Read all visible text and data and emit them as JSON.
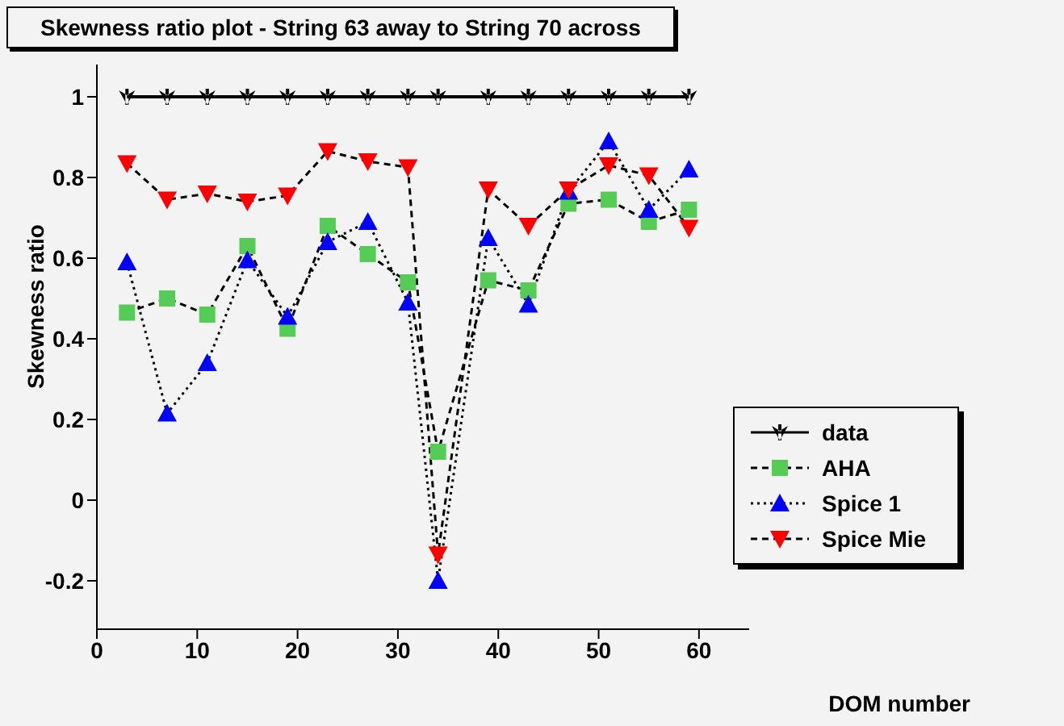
{
  "chart_data": {
    "type": "line",
    "title": "Skewness ratio plot - String 63 away to String  70 across",
    "xlabel": "DOM number",
    "ylabel": "Skewness ratio",
    "x": [
      3,
      7,
      11,
      15,
      19,
      23,
      27,
      31,
      34,
      39,
      43,
      47,
      51,
      55,
      59
    ],
    "series": [
      {
        "name": "data",
        "color": "#000000",
        "marker": "star",
        "line_style": "solid",
        "values": [
          1,
          1,
          1,
          1,
          1,
          1,
          1,
          1,
          1,
          1,
          1,
          1,
          1,
          1,
          1
        ]
      },
      {
        "name": "AHA",
        "color": "#55cc55",
        "marker": "square",
        "line_style": "dashed",
        "values": [
          0.465,
          0.5,
          0.46,
          0.63,
          0.425,
          0.68,
          0.61,
          0.54,
          0.12,
          0.545,
          0.52,
          0.735,
          0.745,
          0.69,
          0.72
        ]
      },
      {
        "name": "Spice 1",
        "color": "#0000ff",
        "marker": "triangle",
        "line_style": "dotted",
        "values": [
          0.59,
          0.215,
          0.34,
          0.595,
          0.455,
          0.64,
          0.69,
          0.49,
          -0.2,
          0.65,
          0.485,
          0.765,
          0.89,
          0.72,
          0.82
        ]
      },
      {
        "name": "Spice Mie",
        "color": "#ff0000",
        "marker": "triangle-down",
        "line_style": "dashed",
        "values": [
          0.835,
          0.745,
          0.76,
          0.74,
          0.755,
          0.865,
          0.84,
          0.825,
          -0.135,
          0.77,
          0.68,
          0.77,
          0.83,
          0.805,
          0.675
        ]
      }
    ],
    "xlim": [
      0,
      65
    ],
    "xticks": [
      0,
      10,
      20,
      30,
      40,
      50,
      60
    ],
    "ylim": [
      -0.32,
      1.08
    ],
    "yticks": [
      -0.2,
      0,
      0.2,
      0.4,
      0.6,
      0.8,
      1
    ],
    "grid": false,
    "legend": "bottom right"
  }
}
